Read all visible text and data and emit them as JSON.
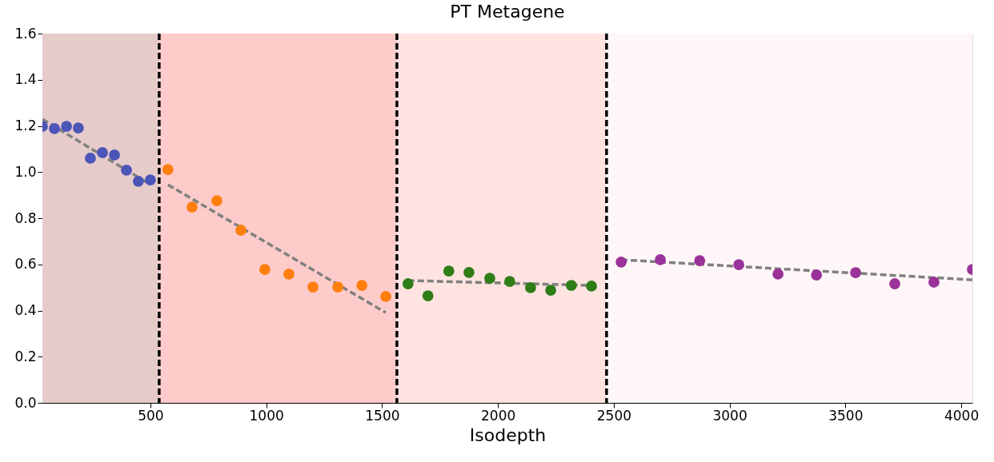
{
  "chart_data": {
    "type": "scatter",
    "title": "PT Metagene",
    "xlabel": "Isodepth",
    "marker": "circle",
    "xlim": [
      34,
      4048
    ],
    "xticks": [
      500,
      1000,
      1500,
      2000,
      2500,
      3000,
      3500,
      4000
    ],
    "ylim": [
      0,
      1.6
    ],
    "yticks": [
      {
        "value": 0,
        "label": "0.0"
      },
      {
        "value": 0.2,
        "label": "0.2"
      },
      {
        "value": 0.4,
        "label": "0.4"
      },
      {
        "value": 0.6,
        "label": "0.6"
      },
      {
        "value": 0.8,
        "label": "0.8"
      },
      {
        "value": 1.0,
        "label": "1.0"
      },
      {
        "value": 1.2,
        "label": "1.2"
      },
      {
        "value": 1.4,
        "label": "1.4"
      },
      {
        "value": 1.6,
        "label": "1.6"
      }
    ],
    "bands": [
      {
        "axis": "x",
        "from": 34,
        "to": 538,
        "color": "#e6cbcb"
      },
      {
        "axis": "x",
        "from": 538,
        "to": 1564,
        "color": "#fecbcb"
      },
      {
        "axis": "x",
        "from": 1564,
        "to": 2469,
        "color": "#fee3e0"
      },
      {
        "axis": "x",
        "from": 2469,
        "to": 4048,
        "color": "#fff7f7"
      }
    ],
    "ref_lines": [
      {
        "axis": "x",
        "value": 538,
        "color": "#000000",
        "line_style": "dashed"
      },
      {
        "axis": "x",
        "value": 1564,
        "color": "#000000",
        "line_style": "dashed"
      },
      {
        "axis": "x",
        "value": 2469,
        "color": "#000000",
        "line_style": "dashed"
      }
    ],
    "series": [
      {
        "type": "line",
        "marker": "none",
        "line_style": "dashed",
        "color": "#808080",
        "x": [
          34,
          483
        ],
        "values": [
          1.229,
          0.956
        ]
      },
      {
        "type": "line",
        "marker": "none",
        "line_style": "dashed",
        "color": "#808080",
        "x": [
          576,
          1516
        ],
        "values": [
          0.945,
          0.391
        ]
      },
      {
        "type": "line",
        "marker": "none",
        "line_style": "dashed",
        "color": "#808080",
        "x": [
          1612,
          2400
        ],
        "values": [
          0.53,
          0.509
        ]
      },
      {
        "type": "line",
        "marker": "none",
        "line_style": "dashed",
        "color": "#808080",
        "x": [
          2532,
          4048
        ],
        "values": [
          0.62,
          0.533
        ]
      },
      {
        "color": "#4c55b8",
        "x": [
          34,
          86,
          138,
          189,
          241,
          293,
          345,
          397,
          448,
          500
        ],
        "values": [
          1.198,
          1.188,
          1.198,
          1.191,
          1.06,
          1.084,
          1.074,
          1.008,
          0.96,
          0.966
        ]
      },
      {
        "color": "#ff7f0e",
        "x": [
          576,
          680,
          787,
          891,
          994,
          1098,
          1202,
          1309,
          1413,
          1516
        ],
        "values": [
          1.011,
          0.848,
          0.876,
          0.748,
          0.578,
          0.558,
          0.502,
          0.502,
          0.509,
          0.461
        ]
      },
      {
        "color": "#2e7d17",
        "x": [
          1612,
          1698,
          1788,
          1875,
          1965,
          2051,
          2141,
          2228,
          2317,
          2404
        ],
        "values": [
          0.516,
          0.464,
          0.571,
          0.565,
          0.54,
          0.526,
          0.499,
          0.488,
          0.509,
          0.506
        ]
      },
      {
        "color": "#993399",
        "x": [
          2532,
          2701,
          2871,
          3040,
          3209,
          3375,
          3544,
          3713,
          3882,
          4048
        ],
        "values": [
          0.61,
          0.62,
          0.616,
          0.599,
          0.558,
          0.554,
          0.564,
          0.516,
          0.523,
          0.578
        ]
      }
    ]
  }
}
